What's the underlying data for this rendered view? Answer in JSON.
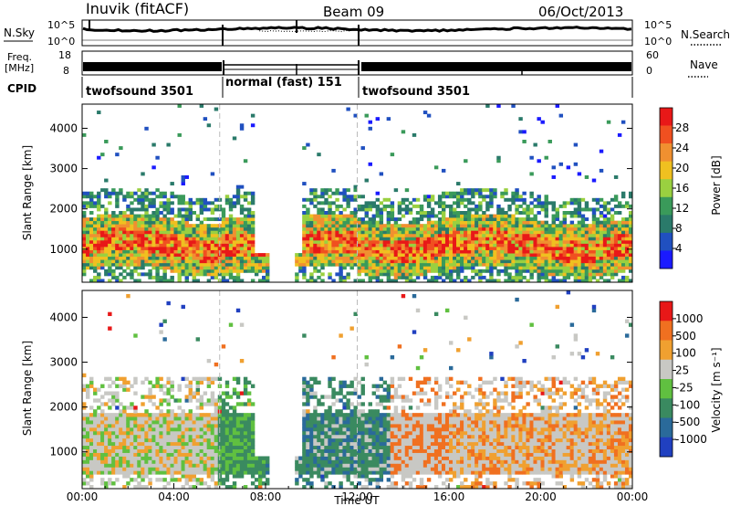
{
  "header": {
    "station": "Inuvik (fitACF)",
    "beam": "Beam 09",
    "date": "06/Oct/2013"
  },
  "panels": {
    "nsky_label": "N.Sky",
    "nsky_ticks": [
      "10^5",
      "10^0"
    ],
    "nsearch_label": "N.Search",
    "nsearch_ticks": [
      "10^5",
      "10^0"
    ],
    "freq_label_1": "Freq.",
    "freq_label_2": "[MHz]",
    "freq_ticks": [
      "18",
      "8"
    ],
    "nave_label": "Nave",
    "nave_ticks": [
      "60",
      "0"
    ],
    "cpid_label": "CPID",
    "cpid_segments": [
      "twofsound 3501",
      "normal (fast) 151",
      "twofsound 3501"
    ]
  },
  "chart_data": [
    {
      "type": "heatmap",
      "name": "power",
      "ylabel": "Slant Range [km]",
      "xlabel": "",
      "yticks": [
        1000,
        2000,
        3000,
        4000
      ],
      "ylim": [
        180,
        4600
      ],
      "xlim": [
        0,
        24
      ],
      "colorbar_label": "Power [dB]",
      "colorbar_ticks": [
        "28",
        "24",
        "20",
        "16",
        "12",
        "8",
        "4"
      ],
      "colors": [
        "#1a1aff",
        "#2050c0",
        "#2a7a6a",
        "#3a9a5a",
        "#9ad040",
        "#f0c020",
        "#f09030",
        "#f05020",
        "#e81818"
      ]
    },
    {
      "type": "heatmap",
      "name": "velocity",
      "ylabel": "Slant Range [km]",
      "xlabel": "Time UT",
      "yticks": [
        1000,
        2000,
        3000,
        4000
      ],
      "ylim": [
        180,
        4600
      ],
      "xlim": [
        0,
        24
      ],
      "xtick_labels": [
        "00:00",
        "04:00",
        "08:00",
        "12:00",
        "16:00",
        "20:00",
        "00:00"
      ],
      "colorbar_label": "Velocity [m s⁻¹]",
      "colorbar_ticks": [
        "1000",
        "500",
        "100",
        "25",
        "-25",
        "-100",
        "-500",
        "-1000"
      ],
      "colors": [
        "#2040c0",
        "#2a6a9a",
        "#3a8a60",
        "#60c040",
        "#c8c8c4",
        "#f0a030",
        "#f07020",
        "#e81818"
      ]
    }
  ]
}
